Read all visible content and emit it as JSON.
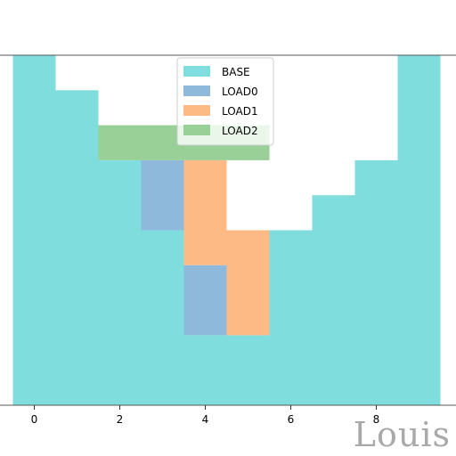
{
  "chart_data": {
    "type": "bar",
    "stacked": true,
    "bar_width": 1.0,
    "categories": [
      0,
      1,
      2,
      3,
      4,
      5,
      6,
      7,
      8,
      9
    ],
    "xticks": [
      "0",
      "2",
      "4",
      "6",
      "8"
    ],
    "xlim": [
      -0.5,
      9.5
    ],
    "ylim": [
      0,
      10
    ],
    "grid": false,
    "legend": "top-center",
    "series": [
      {
        "name": "BASE",
        "color": "#7fdedd",
        "values": [
          10,
          9,
          7,
          5,
          2,
          2,
          5,
          6,
          7,
          10
        ],
        "bottom": [
          0,
          0,
          0,
          0,
          0,
          0,
          0,
          0,
          0,
          0
        ]
      },
      {
        "name": "LOAD0",
        "color": "#8fb9db",
        "values": [
          0,
          0,
          0,
          2,
          2,
          0,
          0,
          0,
          0,
          0
        ],
        "bottom": [
          0,
          0,
          0,
          5,
          2,
          0,
          0,
          0,
          0,
          0
        ]
      },
      {
        "name": "LOAD1",
        "color": "#fdba84",
        "values": [
          0,
          0,
          0,
          0,
          3,
          3,
          0,
          0,
          0,
          0
        ],
        "bottom": [
          0,
          0,
          0,
          0,
          4,
          2,
          0,
          0,
          0,
          0
        ]
      },
      {
        "name": "LOAD2",
        "color": "#99d098",
        "values": [
          0,
          0,
          1,
          1,
          1,
          1,
          0,
          0,
          0,
          0
        ],
        "bottom": [
          0,
          0,
          7,
          7,
          7,
          7,
          0,
          0,
          0,
          0
        ]
      }
    ]
  },
  "watermark": "Louis"
}
